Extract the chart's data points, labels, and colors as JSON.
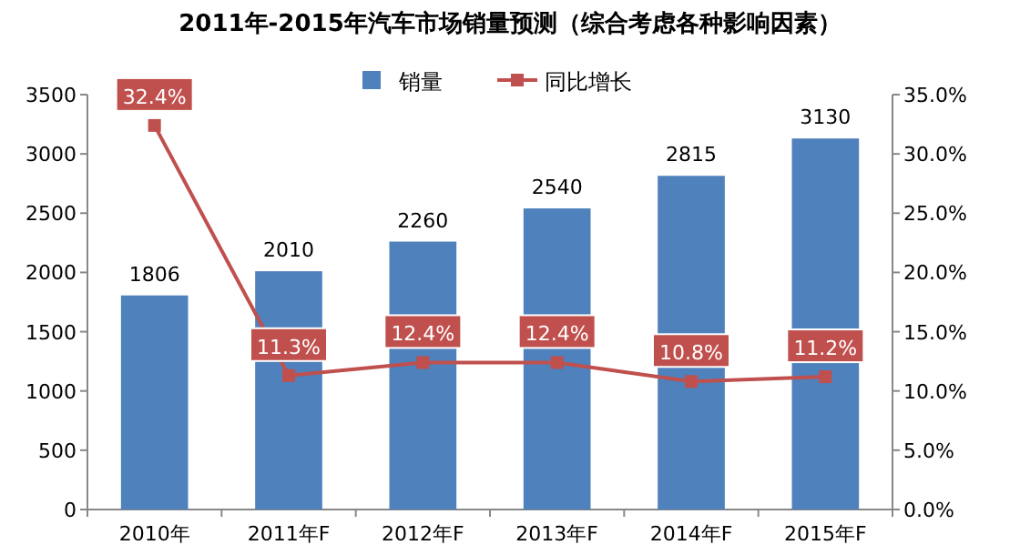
{
  "chart_data": {
    "type": "bar",
    "title": "2011年-2015年汽车市场销量预测（综合考虑各种影响因素）",
    "categories": [
      "2010年",
      "2011年F",
      "2012年F",
      "2013年F",
      "2014年F",
      "2015年F"
    ],
    "series": [
      {
        "name": "销量",
        "color": "#4f81bd",
        "values": [
          1806,
          2010,
          2260,
          2540,
          2815,
          3130
        ],
        "value_labels": [
          "1806",
          "2010",
          "2260",
          "2540",
          "2815",
          "3130"
        ]
      },
      {
        "name": "同比增长",
        "type": "line",
        "axis": "y2",
        "color": "#c0504d",
        "values": [
          32.4,
          11.3,
          12.4,
          12.4,
          10.8,
          11.2
        ],
        "value_labels": [
          "32.4%",
          "11.3%",
          "12.4%",
          "12.4%",
          "10.8%",
          "11.2%"
        ]
      }
    ],
    "ylim": [
      0,
      3500
    ],
    "yticks": [
      0,
      500,
      1000,
      1500,
      2000,
      2500,
      3000,
      3500
    ],
    "y2lim": [
      0,
      35
    ],
    "y2ticks": [
      {
        "value": 0,
        "label": "0.0%"
      },
      {
        "value": 5,
        "label": "5.0%"
      },
      {
        "value": 10,
        "label": "10.0%"
      },
      {
        "value": 15,
        "label": "15.0%"
      },
      {
        "value": 20,
        "label": "20.0%"
      },
      {
        "value": 25,
        "label": "25.0%"
      },
      {
        "value": 30,
        "label": "30.0%"
      },
      {
        "value": 35,
        "label": "35.0%"
      }
    ],
    "legend": "top",
    "marker": "square",
    "line_style": "solid",
    "grid": false
  }
}
